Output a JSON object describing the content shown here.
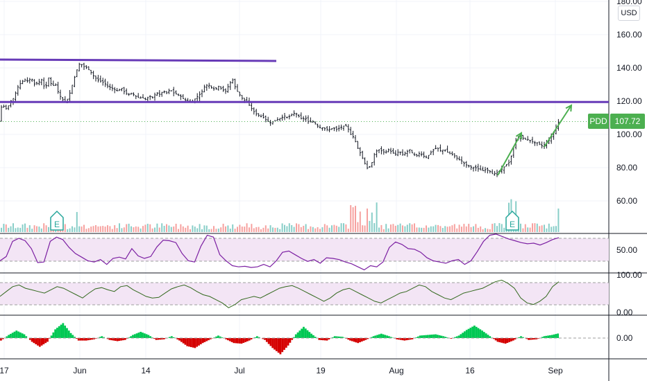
{
  "symbol": "PDD",
  "last_price_label": "107.72",
  "currency": "USD",
  "colors": {
    "up": "#26a69a",
    "down": "#ef5350",
    "candle": "#131722",
    "trendline": "#673ab7",
    "arrow": "#4caf50",
    "price_tag": "#4caf50",
    "rsi_line": "#7b1fa2",
    "rsi_band": "#e1bee7",
    "stoch_line": "#33691e",
    "hist_pos": "#00c853",
    "hist_neg": "#d50000"
  },
  "chart_data": [
    {
      "type": "candlestick",
      "title": "PDD",
      "y_ticks": [
        "180.00",
        "160.00",
        "140.00",
        "120.00",
        "100.00",
        "80.00",
        "60.00"
      ],
      "x_ticks": [
        "17",
        "Jun",
        "14",
        "Jul",
        "19",
        "Aug",
        "16",
        "Sep"
      ],
      "ylim": [
        44,
        183
      ],
      "last_price": 107.72,
      "horizontal_levels": [
        119.5
      ],
      "trendline": [
        [
          144,
          143.5
        ]
      ],
      "price_path": [
        [
          0,
          116
        ],
        [
          5,
          117
        ],
        [
          10,
          115
        ],
        [
          15,
          120
        ],
        [
          20,
          122
        ],
        [
          25,
          128
        ],
        [
          30,
          131
        ],
        [
          35,
          133
        ],
        [
          40,
          132
        ],
        [
          45,
          134
        ],
        [
          50,
          130
        ],
        [
          55,
          131
        ],
        [
          60,
          133
        ],
        [
          65,
          127
        ],
        [
          70,
          134
        ],
        [
          75,
          129
        ],
        [
          80,
          130
        ],
        [
          85,
          124
        ],
        [
          90,
          121
        ],
        [
          95,
          119
        ],
        [
          100,
          124
        ],
        [
          105,
          131
        ],
        [
          110,
          138
        ],
        [
          115,
          143
        ],
        [
          120,
          141
        ],
        [
          125,
          140
        ],
        [
          130,
          138
        ],
        [
          135,
          135
        ],
        [
          140,
          133
        ],
        [
          145,
          132
        ],
        [
          150,
          131
        ],
        [
          155,
          129
        ],
        [
          160,
          128
        ],
        [
          165,
          127
        ],
        [
          170,
          126
        ],
        [
          175,
          128
        ],
        [
          180,
          125
        ],
        [
          185,
          124
        ],
        [
          190,
          125
        ],
        [
          195,
          123
        ],
        [
          200,
          122
        ],
        [
          205,
          122
        ],
        [
          210,
          121
        ],
        [
          215,
          123
        ],
        [
          220,
          122
        ],
        [
          225,
          125
        ],
        [
          230,
          124
        ],
        [
          235,
          126
        ],
        [
          240,
          125
        ],
        [
          245,
          127
        ],
        [
          250,
          125
        ],
        [
          255,
          124
        ],
        [
          260,
          123
        ],
        [
          265,
          121
        ],
        [
          270,
          120
        ],
        [
          275,
          119
        ],
        [
          280,
          121
        ],
        [
          285,
          123
        ],
        [
          290,
          125
        ],
        [
          295,
          129
        ],
        [
          300,
          130
        ],
        [
          305,
          128
        ],
        [
          310,
          127
        ],
        [
          315,
          129
        ],
        [
          320,
          127
        ],
        [
          325,
          126
        ],
        [
          330,
          130
        ],
        [
          335,
          133
        ],
        [
          340,
          127
        ],
        [
          345,
          124
        ],
        [
          350,
          121
        ],
        [
          355,
          120
        ],
        [
          360,
          117
        ],
        [
          365,
          114
        ],
        [
          370,
          112
        ],
        [
          375,
          111
        ],
        [
          380,
          110
        ],
        [
          385,
          108
        ],
        [
          390,
          107
        ],
        [
          395,
          108
        ],
        [
          400,
          109
        ],
        [
          405,
          110
        ],
        [
          410,
          111
        ],
        [
          415,
          110
        ],
        [
          420,
          112
        ],
        [
          425,
          113
        ],
        [
          430,
          111
        ],
        [
          435,
          109
        ],
        [
          440,
          110
        ],
        [
          445,
          107
        ],
        [
          450,
          108
        ],
        [
          455,
          106
        ],
        [
          460,
          104
        ],
        [
          465,
          104
        ],
        [
          470,
          103
        ],
        [
          475,
          103
        ],
        [
          480,
          104
        ],
        [
          485,
          103
        ],
        [
          490,
          104
        ],
        [
          495,
          105
        ],
        [
          500,
          105
        ],
        [
          505,
          100
        ],
        [
          510,
          98
        ],
        [
          515,
          92
        ],
        [
          520,
          88
        ],
        [
          525,
          83
        ],
        [
          530,
          79
        ],
        [
          535,
          82
        ],
        [
          540,
          89
        ],
        [
          545,
          91
        ],
        [
          550,
          90
        ],
        [
          555,
          89
        ],
        [
          560,
          91
        ],
        [
          565,
          89
        ],
        [
          570,
          88
        ],
        [
          575,
          90
        ],
        [
          580,
          88
        ],
        [
          585,
          89
        ],
        [
          590,
          91
        ],
        [
          595,
          88
        ],
        [
          600,
          87
        ],
        [
          605,
          89
        ],
        [
          610,
          87
        ],
        [
          615,
          86
        ],
        [
          620,
          89
        ],
        [
          625,
          91
        ],
        [
          630,
          92
        ],
        [
          635,
          90
        ],
        [
          640,
          91
        ],
        [
          645,
          89
        ],
        [
          650,
          88
        ],
        [
          655,
          87
        ],
        [
          660,
          85
        ],
        [
          665,
          84
        ],
        [
          670,
          82
        ],
        [
          675,
          81
        ],
        [
          680,
          80
        ],
        [
          685,
          80
        ],
        [
          690,
          79
        ],
        [
          695,
          78
        ],
        [
          700,
          79
        ],
        [
          705,
          78
        ],
        [
          710,
          76
        ],
        [
          715,
          77
        ],
        [
          720,
          78
        ],
        [
          725,
          80
        ],
        [
          730,
          82
        ],
        [
          735,
          84
        ],
        [
          738,
          90
        ],
        [
          742,
          96
        ],
        [
          746,
          98
        ],
        [
          750,
          99
        ],
        [
          755,
          97
        ],
        [
          760,
          97
        ],
        [
          765,
          96
        ],
        [
          770,
          95
        ],
        [
          775,
          95
        ],
        [
          780,
          93
        ],
        [
          785,
          94
        ],
        [
          790,
          96
        ],
        [
          795,
          99
        ],
        [
          800,
          103
        ],
        [
          805,
          108
        ]
      ],
      "volume_markers": [
        "E",
        "E"
      ],
      "earnings_marker_x": [
        82,
        738
      ]
    },
    {
      "type": "line",
      "title": "",
      "y_ticks": [
        "50.00"
      ],
      "band": [
        30,
        70
      ],
      "values": [
        40,
        47,
        72,
        77,
        73,
        60,
        37,
        38,
        72,
        79,
        75,
        62,
        52,
        46,
        40,
        38,
        42,
        34,
        44,
        46,
        43,
        60,
        48,
        44,
        47,
        63,
        74,
        73,
        70,
        52,
        40,
        38,
        64,
        82,
        79,
        50,
        40,
        32,
        30,
        31,
        29,
        30,
        34,
        30,
        40,
        54,
        56,
        50,
        44,
        39,
        42,
        36,
        45,
        44,
        42,
        38,
        35,
        30,
        25,
        32,
        30,
        38,
        62,
        71,
        67,
        60,
        59,
        54,
        45,
        40,
        38,
        36,
        40,
        42,
        34,
        40,
        55,
        72,
        82,
        84,
        80,
        76,
        73,
        70,
        68,
        69,
        66,
        70,
        75,
        78
      ],
      "ylim": [
        20,
        85
      ]
    },
    {
      "type": "line",
      "title": "",
      "y_ticks": [
        "100.00",
        "0.00"
      ],
      "band": [
        20,
        80
      ],
      "values": [
        45,
        60,
        75,
        80,
        70,
        65,
        60,
        55,
        65,
        75,
        70,
        60,
        50,
        40,
        55,
        68,
        72,
        65,
        60,
        75,
        78,
        65,
        55,
        45,
        40,
        42,
        55,
        68,
        75,
        80,
        72,
        60,
        50,
        45,
        35,
        25,
        10,
        20,
        35,
        40,
        45,
        40,
        50,
        60,
        70,
        75,
        78,
        70,
        60,
        50,
        40,
        30,
        40,
        55,
        65,
        70,
        60,
        50,
        40,
        30,
        25,
        35,
        45,
        55,
        60,
        70,
        80,
        75,
        60,
        50,
        40,
        35,
        45,
        55,
        60,
        65,
        70,
        80,
        90,
        95,
        85,
        70,
        40,
        25,
        20,
        30,
        45,
        75,
        90
      ],
      "ylim": [
        0,
        100
      ]
    },
    {
      "type": "bar",
      "title": "",
      "y_ticks": [
        "0.00"
      ],
      "values": [
        -0.4,
        0.5,
        1.2,
        0.6,
        -0.6,
        -1.4,
        -0.6,
        1.4,
        2.4,
        0.8,
        -0.4,
        -0.4,
        -0.2,
        0.3,
        -0.3,
        -0.5,
        -0.3,
        0.5,
        1.0,
        0.5,
        -0.3,
        -0.2,
        0.3,
        -0.4,
        -1.3,
        -1.6,
        -0.8,
        -0.2,
        0.4,
        -0.2,
        -0.8,
        -0.9,
        -0.4,
        0.3,
        -0.3,
        -1.6,
        -2.6,
        -1.2,
        0.6,
        1.8,
        0.7,
        -0.3,
        -0.4,
        0.3,
        0.2,
        -0.4,
        -0.8,
        -0.3,
        0.3,
        0.7,
        0.3,
        -0.2,
        -0.4,
        -0.2,
        0.4,
        0.5,
        0.6,
        0.3,
        -0.1,
        0.4,
        1.3,
        2.0,
        1.2,
        0.3,
        -0.6,
        -0.9,
        -0.4,
        0.3,
        -0.3,
        -0.2,
        0.3,
        0.5,
        0.8
      ],
      "ylim": [
        -3,
        3
      ]
    }
  ]
}
